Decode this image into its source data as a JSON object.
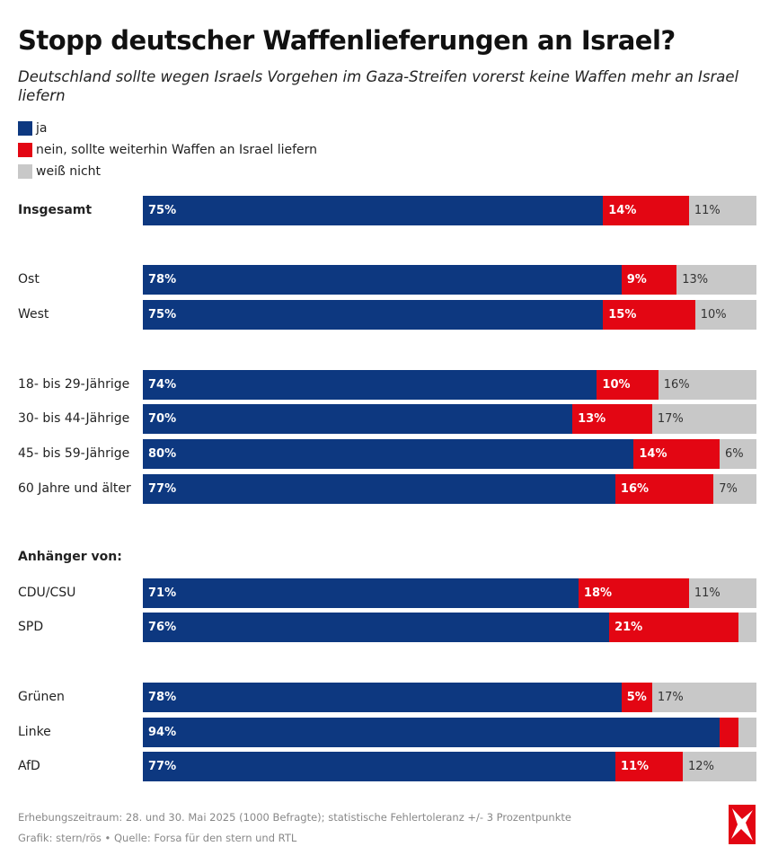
{
  "chart_data": {
    "type": "bar",
    "orientation": "horizontal",
    "stacked": true,
    "title": "Stopp deutscher Waffenlieferungen an Israel?",
    "subtitle": "Deutschland sollte wegen Israels Vorgehen im Gaza-Streifen vorerst keine Waffen mehr an Israel liefern",
    "xlim": [
      0,
      100
    ],
    "grid": false,
    "legend_position": "top-left",
    "series": [
      {
        "name": "ja",
        "color": "#0d3880"
      },
      {
        "name": "nein, sollte weiterhin Waffen an Israel liefern",
        "color": "#e30613"
      },
      {
        "name": "weiß nicht",
        "color": "#c8c8c8"
      }
    ],
    "groups": [
      {
        "heading": "",
        "rows": [
          {
            "label": "Insgesamt",
            "bold": true,
            "values": [
              75,
              14,
              11
            ],
            "labels": [
              "75%",
              "14%",
              "11%"
            ]
          }
        ]
      },
      {
        "heading": "",
        "rows": [
          {
            "label": "Ost",
            "values": [
              78,
              9,
              13
            ],
            "labels": [
              "78%",
              "9%",
              "13%"
            ]
          },
          {
            "label": "West",
            "values": [
              75,
              15,
              10
            ],
            "labels": [
              "75%",
              "15%",
              "10%"
            ]
          }
        ]
      },
      {
        "heading": "",
        "rows": [
          {
            "label": "18- bis 29-Jährige",
            "values": [
              74,
              10,
              16
            ],
            "labels": [
              "74%",
              "10%",
              "16%"
            ]
          },
          {
            "label": "30- bis 44-Jährige",
            "values": [
              70,
              13,
              17
            ],
            "labels": [
              "70%",
              "13%",
              "17%"
            ]
          },
          {
            "label": "45- bis 59-Jährige",
            "values": [
              80,
              14,
              6
            ],
            "labels": [
              "80%",
              "14%",
              "6%"
            ]
          },
          {
            "label": "60 Jahre und älter",
            "values": [
              77,
              16,
              7
            ],
            "labels": [
              "77%",
              "16%",
              "7%"
            ]
          }
        ]
      },
      {
        "heading": "Anhänger von:",
        "rows": [
          {
            "label": "CDU/CSU",
            "values": [
              71,
              18,
              11
            ],
            "labels": [
              "71%",
              "18%",
              "11%"
            ]
          },
          {
            "label": "SPD",
            "values": [
              76,
              21,
              3
            ],
            "labels": [
              "76%",
              "21%",
              ""
            ]
          }
        ]
      },
      {
        "heading": "",
        "rows": [
          {
            "label": "Grünen",
            "values": [
              78,
              5,
              17
            ],
            "labels": [
              "78%",
              "5%",
              "17%"
            ]
          },
          {
            "label": "Linke",
            "values": [
              94,
              3,
              3
            ],
            "labels": [
              "94%",
              "",
              ""
            ]
          },
          {
            "label": "AfD",
            "values": [
              77,
              11,
              12
            ],
            "labels": [
              "77%",
              "11%",
              "12%"
            ]
          }
        ]
      }
    ]
  },
  "footer": {
    "note": "Erhebungszeitraum: 28. und 30. Mai 2025 (1000 Befragte); statistische Fehlertoleranz +/- 3 Prozentpunkte",
    "source": "Grafik: stern/rös • Quelle: Forsa für den stern und RTL"
  },
  "logo": {
    "name": "stern",
    "color": "#e30613"
  }
}
